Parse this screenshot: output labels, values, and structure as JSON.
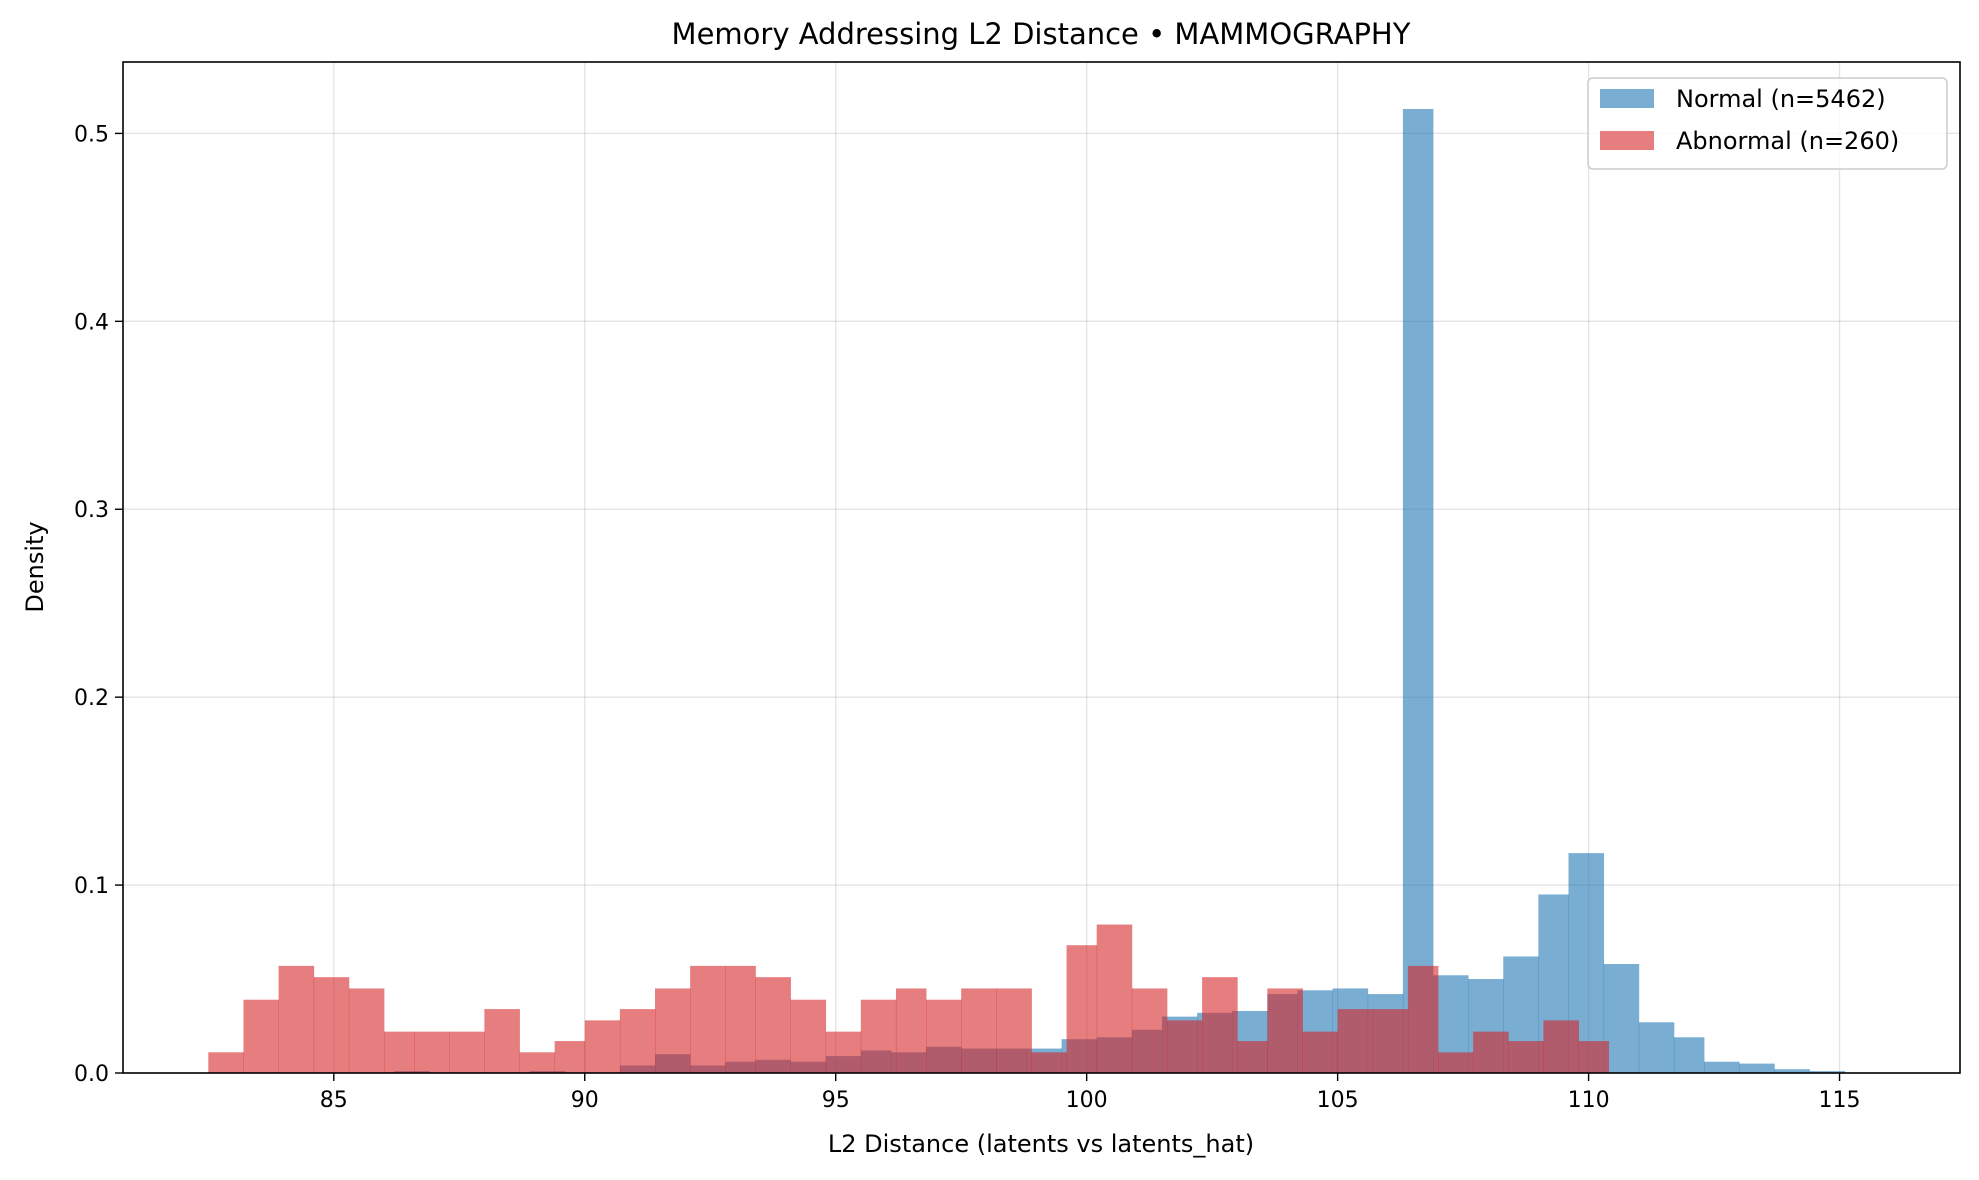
{
  "chart_data": {
    "type": "histogram",
    "title": "Memory Addressing L2 Distance • MAMMOGRAPHY",
    "xlabel": "L2 Distance (latents vs latents_hat)",
    "ylabel": "Density",
    "xlim": [
      80.8,
      117.4
    ],
    "ylim": [
      0,
      0.538
    ],
    "xticks": [
      85,
      90,
      95,
      100,
      105,
      110,
      115
    ],
    "yticks": [
      0.0,
      0.1,
      0.2,
      0.3,
      0.4,
      0.5
    ],
    "grid": true,
    "legend_position": "upper right",
    "series": [
      {
        "name": "Normal (n=5462)",
        "color": "#1f77b4",
        "opacity": 0.6,
        "bins": [
          [
            86.2,
            86.9,
            0.001
          ],
          [
            88.9,
            89.6,
            0.001
          ],
          [
            90.7,
            91.4,
            0.004
          ],
          [
            91.4,
            92.1,
            0.01
          ],
          [
            92.1,
            92.8,
            0.004
          ],
          [
            92.8,
            93.4,
            0.006
          ],
          [
            93.4,
            94.1,
            0.007
          ],
          [
            94.1,
            94.8,
            0.006
          ],
          [
            94.8,
            95.5,
            0.009
          ],
          [
            95.5,
            96.1,
            0.012
          ],
          [
            96.1,
            96.8,
            0.011
          ],
          [
            96.8,
            97.5,
            0.014
          ],
          [
            97.5,
            98.2,
            0.013
          ],
          [
            98.2,
            98.8,
            0.013
          ],
          [
            98.8,
            99.5,
            0.013
          ],
          [
            99.5,
            100.2,
            0.018
          ],
          [
            100.2,
            100.9,
            0.019
          ],
          [
            100.9,
            101.5,
            0.023
          ],
          [
            101.5,
            102.2,
            0.03
          ],
          [
            102.2,
            102.9,
            0.032
          ],
          [
            102.9,
            103.6,
            0.033
          ],
          [
            103.6,
            104.2,
            0.042
          ],
          [
            104.2,
            104.9,
            0.044
          ],
          [
            104.9,
            105.6,
            0.045
          ],
          [
            105.6,
            106.3,
            0.042
          ],
          [
            106.3,
            106.9,
            0.513
          ],
          [
            106.9,
            107.6,
            0.052
          ],
          [
            107.6,
            108.3,
            0.05
          ],
          [
            108.3,
            109.0,
            0.062
          ],
          [
            109.0,
            109.6,
            0.095
          ],
          [
            109.6,
            110.3,
            0.117
          ],
          [
            110.3,
            111.0,
            0.058
          ],
          [
            111.0,
            111.7,
            0.027
          ],
          [
            111.7,
            112.3,
            0.019
          ],
          [
            112.3,
            113.0,
            0.006
          ],
          [
            113.0,
            113.7,
            0.005
          ],
          [
            113.7,
            114.4,
            0.002
          ],
          [
            114.4,
            115.1,
            0.001
          ]
        ]
      },
      {
        "name": "Abnormal (n=260)",
        "color": "#d62728",
        "opacity": 0.6,
        "bins": [
          [
            82.5,
            83.2,
            0.011
          ],
          [
            83.2,
            83.9,
            0.039
          ],
          [
            83.9,
            84.6,
            0.057
          ],
          [
            84.6,
            85.3,
            0.051
          ],
          [
            85.3,
            86.0,
            0.045
          ],
          [
            86.0,
            86.6,
            0.022
          ],
          [
            86.6,
            87.3,
            0.022
          ],
          [
            87.3,
            88.0,
            0.022
          ],
          [
            88.0,
            88.7,
            0.034
          ],
          [
            88.7,
            89.4,
            0.011
          ],
          [
            89.4,
            90.0,
            0.017
          ],
          [
            90.0,
            90.7,
            0.028
          ],
          [
            90.7,
            91.4,
            0.034
          ],
          [
            91.4,
            92.1,
            0.045
          ],
          [
            92.1,
            92.8,
            0.057
          ],
          [
            92.8,
            93.4,
            0.057
          ],
          [
            93.4,
            94.1,
            0.051
          ],
          [
            94.1,
            94.8,
            0.039
          ],
          [
            94.8,
            95.5,
            0.022
          ],
          [
            95.5,
            96.2,
            0.039
          ],
          [
            96.2,
            96.8,
            0.045
          ],
          [
            96.8,
            97.5,
            0.039
          ],
          [
            97.5,
            98.2,
            0.045
          ],
          [
            98.2,
            98.9,
            0.045
          ],
          [
            98.9,
            99.6,
            0.011
          ],
          [
            99.6,
            100.2,
            0.068
          ],
          [
            100.2,
            100.9,
            0.079
          ],
          [
            100.9,
            101.6,
            0.045
          ],
          [
            101.6,
            102.3,
            0.028
          ],
          [
            102.3,
            103.0,
            0.051
          ],
          [
            103.0,
            103.6,
            0.017
          ],
          [
            103.6,
            104.3,
            0.045
          ],
          [
            104.3,
            105.0,
            0.022
          ],
          [
            105.0,
            105.7,
            0.034
          ],
          [
            105.7,
            106.4,
            0.034
          ],
          [
            106.4,
            107.0,
            0.057
          ],
          [
            107.0,
            107.7,
            0.011
          ],
          [
            107.7,
            108.4,
            0.022
          ],
          [
            108.4,
            109.1,
            0.017
          ],
          [
            109.1,
            109.8,
            0.028
          ],
          [
            109.8,
            110.4,
            0.017
          ]
        ]
      }
    ]
  }
}
